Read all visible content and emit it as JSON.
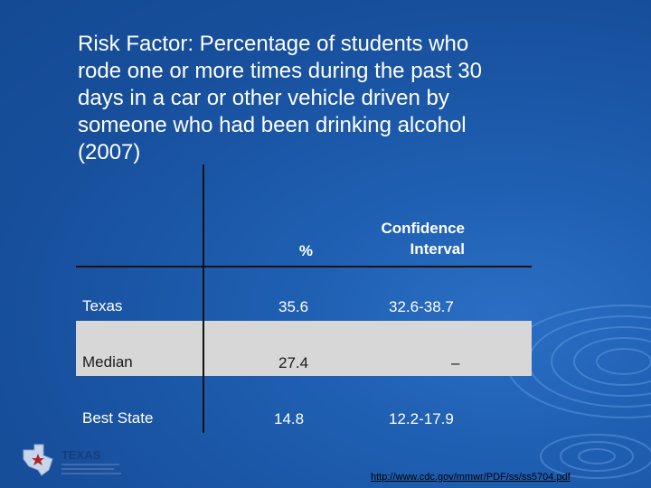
{
  "title_lines": [
    "Risk Factor: Percentage of students who",
    "rode one or more times during the past 30",
    "days in a car or other vehicle driven by",
    "someone who had been drinking alcohol",
    "(2007)"
  ],
  "table": {
    "headers": {
      "percent": "%",
      "ci_line1": "Confidence",
      "ci_line2": "Interval"
    },
    "rows": [
      {
        "label": "Texas",
        "percent": "35.6",
        "ci": "32.6-38.7"
      },
      {
        "label": "Median",
        "percent": "27.4",
        "ci": "–"
      },
      {
        "label": "Best State",
        "percent": "14.8",
        "ci": "12.2-17.9"
      }
    ]
  },
  "logo": {
    "text": "TEXAS"
  },
  "source_url": "http://www.cdc.gov/mmwr/PDF/ss/ss5704.pdf",
  "colors": {
    "background": "#1f5fb2",
    "median_band": "#d7d7d7",
    "text": "#ffffff"
  }
}
